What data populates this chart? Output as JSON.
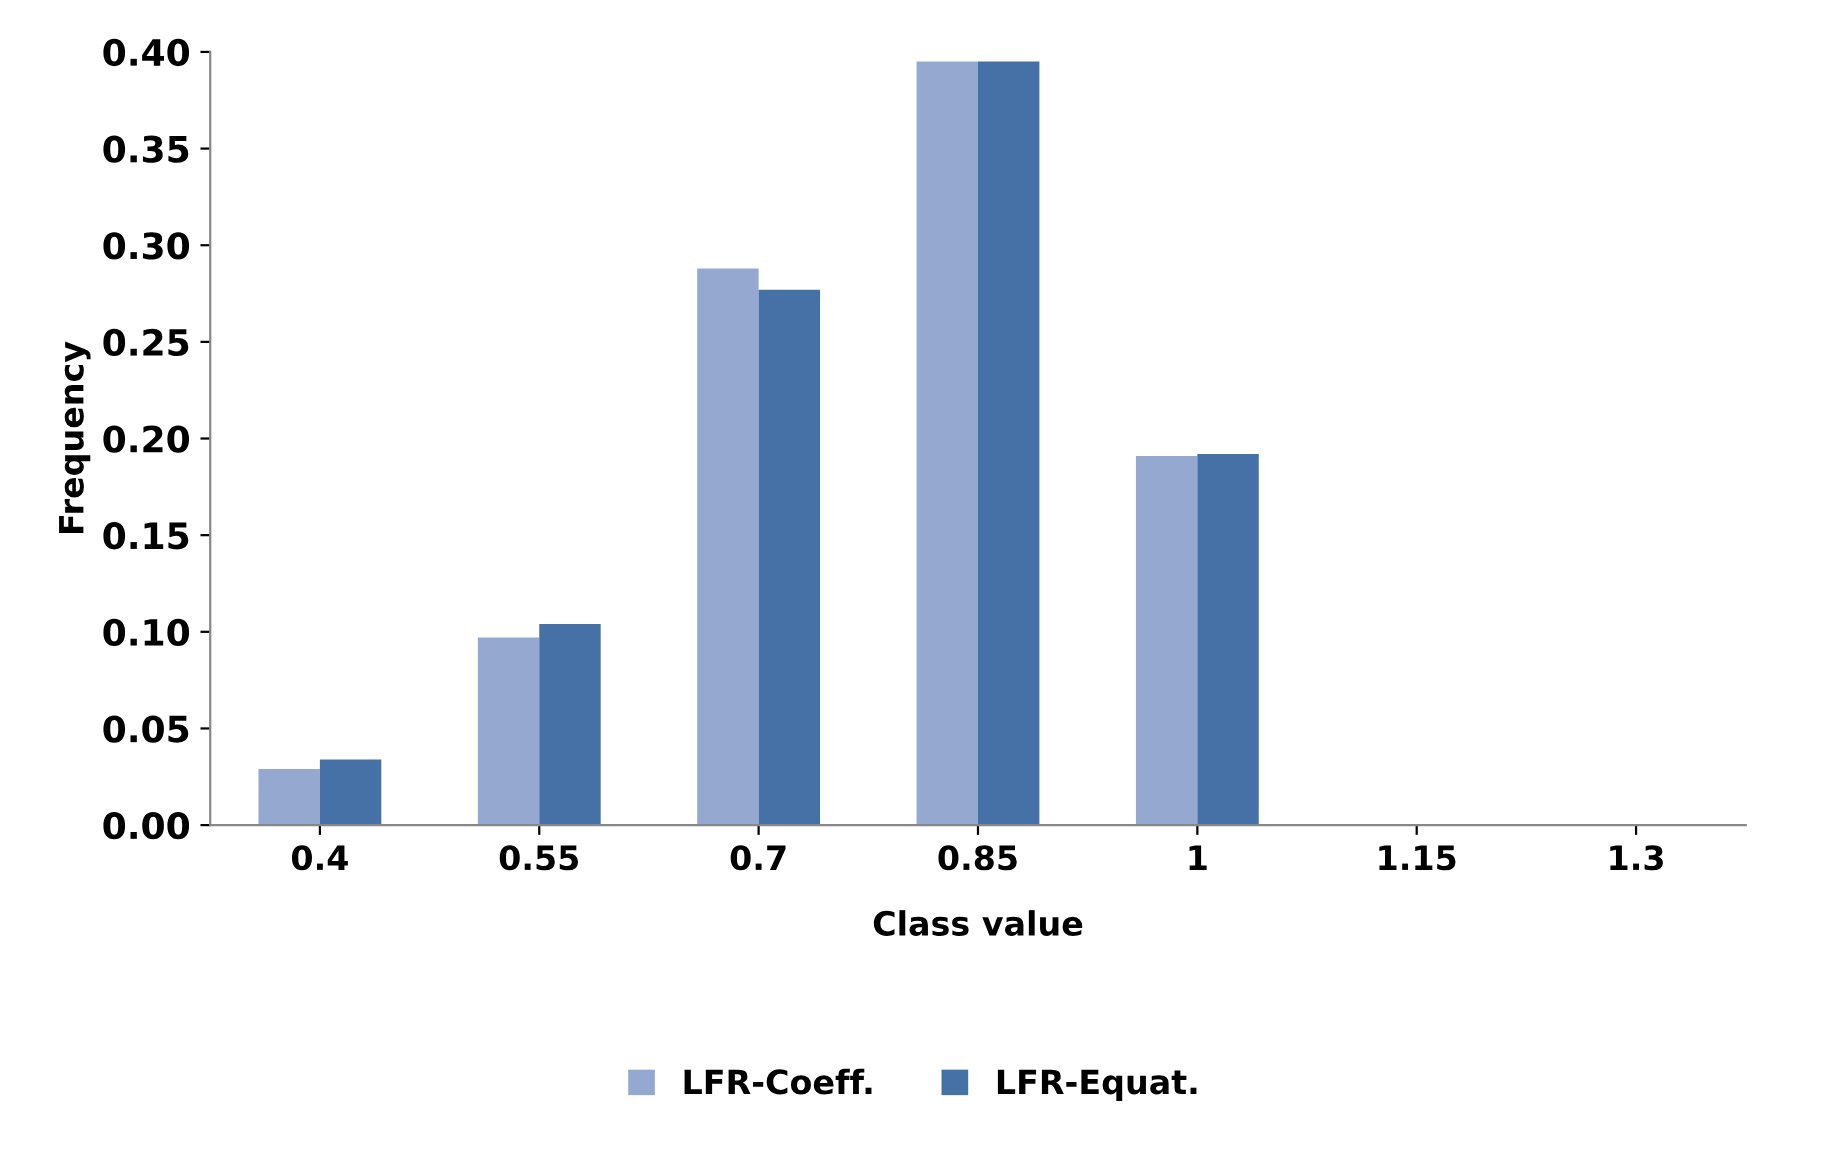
{
  "chart_data": {
    "type": "bar",
    "xlabel": "Class value",
    "ylabel": "Frequency",
    "categories": [
      "0.4",
      "0.55",
      "0.7",
      "0.85",
      "1",
      "1.15",
      "1.3"
    ],
    "series": [
      {
        "name": "LFR-Coeff.",
        "color": "#95a9d0",
        "values": [
          0.029,
          0.097,
          0.288,
          0.395,
          0.191,
          0,
          0
        ]
      },
      {
        "name": "LFR-Equat.",
        "color": "#4571a7",
        "values": [
          0.034,
          0.104,
          0.277,
          0.395,
          0.192,
          0,
          0
        ]
      }
    ],
    "ylim": [
      0,
      0.4
    ],
    "yticks": [
      {
        "value": 0,
        "label": "0.00"
      },
      {
        "value": 0.05,
        "label": "0.05"
      },
      {
        "value": 0.1,
        "label": "0.10"
      },
      {
        "value": 0.15,
        "label": "0.15"
      },
      {
        "value": 0.2,
        "label": "0.20"
      },
      {
        "value": 0.25,
        "label": "0.25"
      },
      {
        "value": 0.3,
        "label": "0.30"
      },
      {
        "value": 0.35,
        "label": "0.35"
      },
      {
        "value": 0.4,
        "label": "0.40"
      }
    ],
    "grid": false,
    "legend": "bottom"
  }
}
